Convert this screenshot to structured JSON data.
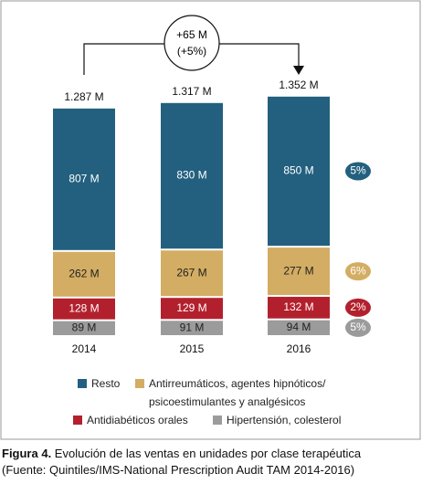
{
  "chart_data": {
    "type": "stacked_bar",
    "categories": [
      "2014",
      "2015",
      "2016"
    ],
    "series": [
      {
        "name": "Hipertensión, colesterol",
        "color": "#9b9b9b",
        "label_color": "#222",
        "values": [
          89,
          91,
          94
        ],
        "value_labels": [
          "89 M",
          "91 M",
          "94 M"
        ],
        "change": {
          "value": 5,
          "label": "5%"
        }
      },
      {
        "name": "Antidiabéticos orales",
        "color": "#b3202d",
        "label_color": "#fff",
        "values": [
          128,
          129,
          132
        ],
        "value_labels": [
          "128 M",
          "129 M",
          "132 M"
        ],
        "change": {
          "value": 2,
          "label": "2%"
        }
      },
      {
        "name": "Antirreumáticos, agentes hipnóticos/ psicoestimulantes y analgésicos",
        "color": "#d3ad63",
        "label_color": "#222",
        "values": [
          262,
          267,
          277
        ],
        "value_labels": [
          "262 M",
          "267 M",
          "277 M"
        ],
        "change": {
          "value": 6,
          "label": "6%"
        }
      },
      {
        "name": "Resto",
        "color": "#23607f",
        "label_color": "#fff",
        "values": [
          807,
          830,
          850
        ],
        "value_labels": [
          "807 M",
          "830 M",
          "850 M"
        ],
        "change": {
          "value": 5,
          "label": "5%"
        }
      }
    ],
    "totals": {
      "values": [
        1287,
        1317,
        1352
      ],
      "value_labels": [
        "1.287 M",
        "1.317 M",
        "1.352 M"
      ]
    },
    "annotation": {
      "line1": "+65 M",
      "line2": "(+5%)"
    }
  },
  "caption": {
    "label": "Figura 4.",
    "text": " Evolución de las ventas en unidades por clase terapéutica",
    "source": "(Fuente: Quintiles/IMS-National Prescription Audit TAM 2014-2016)"
  }
}
